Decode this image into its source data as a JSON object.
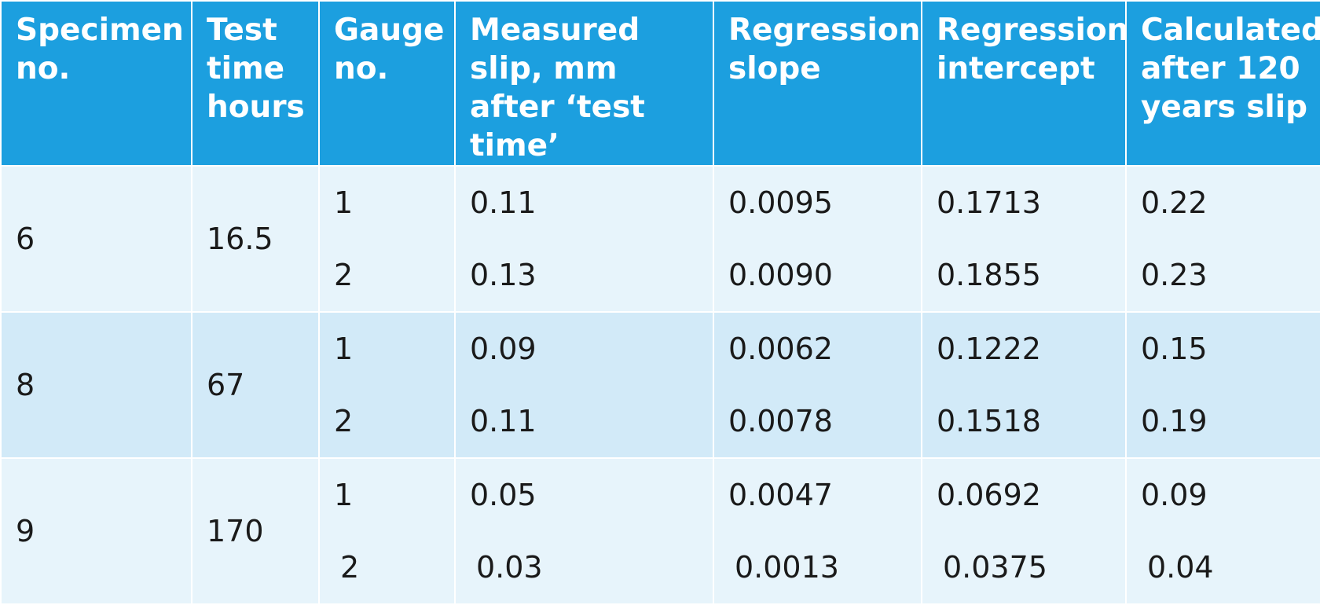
{
  "headers": [
    "Specimen no.",
    "Test time hours",
    "Gauge no.",
    "Measured slip, mm after ‘test time’",
    "Regression slope",
    "Regression intercept",
    "Calculated after 120 years slip"
  ],
  "rows": [
    {
      "specimen": "6",
      "test_time": "16.5",
      "gauges": [
        "1",
        "2"
      ],
      "measured_slip": [
        "0.11",
        "0.13"
      ],
      "slope": [
        "0.0095",
        "0.0090"
      ],
      "intercept": [
        "0.1713",
        "0.1855"
      ],
      "calculated": [
        "0.22",
        "0.23"
      ]
    },
    {
      "specimen": "8",
      "test_time": "67",
      "gauges": [
        "1",
        "2"
      ],
      "measured_slip": [
        "0.09",
        "0.11"
      ],
      "slope": [
        "0.0062",
        "0.0078"
      ],
      "intercept": [
        "0.1222",
        "0.1518"
      ],
      "calculated": [
        "0.15",
        "0.19"
      ]
    },
    {
      "specimen": "9",
      "test_time": "170",
      "gauges": [
        "1",
        "2"
      ],
      "measured_slip": [
        "0.05",
        "0.03"
      ],
      "slope": [
        "0.0047",
        "0.0013"
      ],
      "intercept": [
        "0.0692",
        "0.0375"
      ],
      "calculated": [
        "0.09",
        "0.04"
      ]
    }
  ],
  "colors": {
    "header_bg": "#1c9fdf",
    "row_light": "#e7f4fb",
    "row_mid": "#d2eaf8",
    "header_text": "#ffffff"
  }
}
